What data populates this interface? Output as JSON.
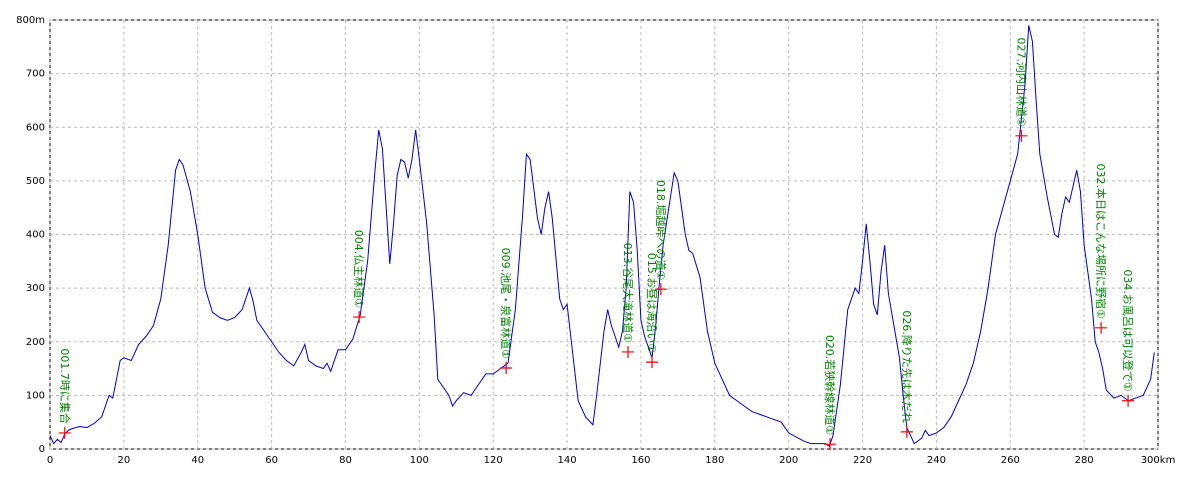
{
  "chart_data": {
    "type": "line",
    "color": "#0000cc",
    "grid": true,
    "marker_color": "#ff0000",
    "annotation_color": "#008000",
    "xlim": [
      0,
      300
    ],
    "ylim": [
      0,
      800
    ],
    "xticks": [
      0,
      20,
      40,
      60,
      80,
      100,
      120,
      140,
      160,
      180,
      200,
      220,
      240,
      260,
      280,
      {
        "value": 300,
        "label": "300km"
      }
    ],
    "yticks": [
      0,
      100,
      200,
      300,
      400,
      500,
      600,
      700,
      {
        "value": 800,
        "label": "800m"
      }
    ],
    "x": [
      0,
      1,
      2,
      3,
      4,
      5,
      6,
      8,
      10,
      12,
      14,
      16,
      17,
      18,
      19,
      20,
      22,
      24,
      26,
      28,
      30,
      32,
      34,
      35,
      36,
      38,
      40,
      42,
      44,
      46,
      48,
      50,
      52,
      54,
      55,
      56,
      58,
      60,
      62,
      64,
      66,
      68,
      69,
      70,
      72,
      74,
      75,
      76,
      78,
      80,
      82,
      84,
      86,
      88,
      89,
      90,
      92,
      93,
      94,
      95,
      96,
      97,
      98,
      99,
      100,
      102,
      104,
      105,
      106,
      108,
      109,
      110,
      112,
      114,
      116,
      118,
      120,
      122,
      124,
      126,
      128,
      129,
      130,
      132,
      133,
      134,
      135,
      136,
      138,
      139,
      140,
      142,
      143,
      145,
      147,
      148,
      150,
      151,
      152,
      153,
      154,
      155,
      156,
      157,
      158,
      159,
      160,
      161,
      162,
      163,
      164,
      165,
      166,
      168,
      169,
      170,
      172,
      173,
      174,
      176,
      178,
      180,
      182,
      184,
      186,
      188,
      190,
      194,
      198,
      200,
      204,
      206,
      208,
      210,
      211,
      212,
      214,
      216,
      218,
      219,
      220,
      221,
      222,
      223,
      224,
      225,
      226,
      227,
      228,
      230,
      231,
      232,
      234,
      236,
      237,
      238,
      240,
      242,
      244,
      246,
      248,
      250,
      252,
      254,
      256,
      258,
      260,
      262,
      264,
      265,
      266,
      267,
      268,
      270,
      272,
      273,
      274,
      275,
      276,
      277,
      278,
      279,
      280,
      282,
      283,
      284,
      285,
      286,
      288,
      290,
      292,
      294,
      296,
      298,
      299
    ],
    "values": [
      25,
      10,
      18,
      12,
      28,
      35,
      38,
      42,
      40,
      48,
      60,
      100,
      95,
      130,
      165,
      170,
      165,
      195,
      210,
      230,
      280,
      380,
      520,
      540,
      530,
      480,
      400,
      300,
      255,
      245,
      240,
      245,
      260,
      300,
      275,
      240,
      220,
      200,
      180,
      165,
      155,
      180,
      195,
      165,
      155,
      150,
      160,
      145,
      185,
      185,
      205,
      250,
      350,
      520,
      595,
      560,
      345,
      420,
      510,
      540,
      535,
      505,
      540,
      595,
      540,
      420,
      250,
      130,
      120,
      100,
      80,
      90,
      105,
      100,
      120,
      140,
      140,
      150,
      160,
      260,
      440,
      550,
      540,
      430,
      400,
      450,
      480,
      430,
      280,
      260,
      270,
      150,
      90,
      60,
      45,
      100,
      220,
      260,
      230,
      210,
      190,
      220,
      300,
      480,
      460,
      370,
      240,
      210,
      190,
      170,
      230,
      310,
      380,
      470,
      515,
      500,
      400,
      370,
      365,
      320,
      220,
      160,
      130,
      100,
      90,
      80,
      70,
      60,
      50,
      30,
      15,
      10,
      10,
      10,
      5,
      25,
      120,
      260,
      300,
      290,
      350,
      420,
      350,
      270,
      250,
      330,
      380,
      290,
      250,
      170,
      100,
      40,
      10,
      20,
      35,
      25,
      30,
      40,
      60,
      90,
      120,
      160,
      220,
      300,
      400,
      450,
      500,
      550,
      680,
      790,
      760,
      650,
      550,
      470,
      400,
      395,
      440,
      470,
      460,
      490,
      520,
      480,
      380,
      280,
      200,
      180,
      150,
      110,
      95,
      100,
      90,
      95,
      100,
      130,
      180
    ],
    "annotations": [
      {
        "x": 4,
        "y": 30,
        "label": "001.7時に集合"
      },
      {
        "x": 83.7,
        "y": 246,
        "label": "004.仏主林道①"
      },
      {
        "x": 123.5,
        "y": 151,
        "label": "009.池尾・泉富林道①"
      },
      {
        "x": 156.5,
        "y": 181,
        "label": "013.谷尾大滝林道①"
      },
      {
        "x": 163,
        "y": 162,
        "label": "015.お昼は海沿い①"
      },
      {
        "x": 165.4,
        "y": 298,
        "label": "018.堀越峠への道①"
      },
      {
        "x": 211.2,
        "y": 9,
        "label": "020.若狭幹線林道①"
      },
      {
        "x": 232,
        "y": 32,
        "label": "026.降りた先は木だれ"
      },
      {
        "x": 263,
        "y": 584,
        "label": "027.河内山林道①"
      },
      {
        "x": 284.6,
        "y": 226,
        "label": "032.本日はこんな場所に野宿①"
      },
      {
        "x": 291.9,
        "y": 90,
        "label": "034.お風呂は可以登で①"
      }
    ]
  }
}
